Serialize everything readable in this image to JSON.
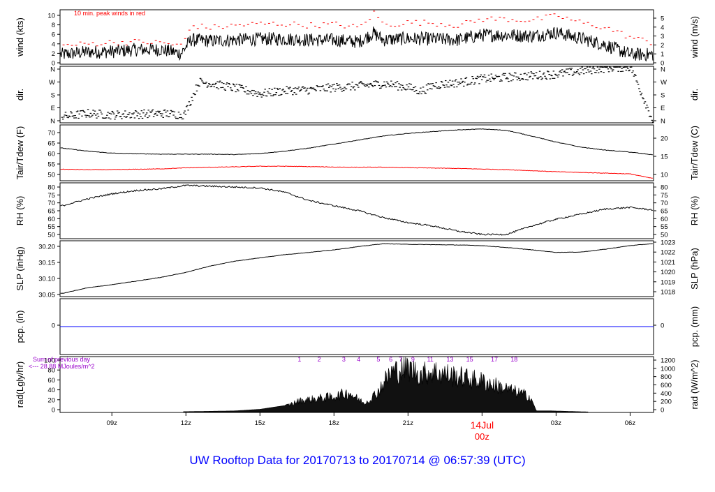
{
  "footer_title": "UW Rooftop Data for 20170713  to  20170714 @ 06:57:39  (UTC)",
  "colors": {
    "text_left": "#000000",
    "peak": "#ff0000",
    "dew": "#ff0000",
    "pcp": "#0000ff",
    "rad_note": "#9900cc",
    "date_marker": "#ff0000",
    "footer": "#0000ff"
  },
  "x_axis": {
    "ticks": [
      "09z",
      "12z",
      "15z",
      "18z",
      "21z",
      "03z",
      "06z"
    ],
    "tick_hours": [
      9,
      12,
      15,
      18,
      21,
      27,
      30
    ],
    "date_marker_day": "14Jul",
    "date_marker_time": "00z",
    "date_marker_hour": 24,
    "range_hours": [
      6.9,
      30.95
    ]
  },
  "chart_data": [
    {
      "type": "line",
      "panel": "wind",
      "ylabel_left": "wind (kts)",
      "ylabel_right": "wind (m/s)",
      "annotation": "10 min. peak winds in red",
      "left_ticks": [
        "0",
        "2",
        "4",
        "6",
        "8",
        "10"
      ],
      "right_ticks": [
        "0",
        "1",
        "2",
        "3",
        "4",
        "5"
      ],
      "ylim": [
        0,
        11.2
      ],
      "series": [
        {
          "x": [
            7,
            8,
            9,
            10,
            11,
            11.8,
            12.2,
            13,
            14,
            15,
            16,
            17,
            18,
            19,
            19.6,
            20,
            21,
            22,
            23,
            24,
            25,
            26,
            27,
            28,
            29,
            30,
            30.9
          ],
          "values": [
            2,
            2.5,
            2.6,
            3,
            3,
            2.2,
            5,
            4.8,
            5,
            5.2,
            5.2,
            5,
            5,
            4.6,
            6.4,
            5,
            5.3,
            5.2,
            5,
            6,
            6,
            5.8,
            6.5,
            5.3,
            4,
            2,
            2
          ]
        },
        {
          "x": [
            7,
            8,
            9,
            10,
            11,
            11.8,
            12.2,
            13,
            14,
            15,
            16,
            17,
            18,
            19,
            19.6,
            20,
            21,
            22,
            23,
            24,
            25,
            26,
            27,
            28,
            29,
            30,
            30.9
          ],
          "values": [
            3.8,
            4.2,
            4.5,
            4.6,
            4.4,
            3.8,
            8,
            7.5,
            8,
            8.3,
            8.3,
            8,
            8.2,
            7.5,
            10.6,
            8,
            8.6,
            8.5,
            8,
            9.3,
            9.3,
            9,
            10,
            8.5,
            7.5,
            5.5,
            4.4
          ]
        }
      ]
    },
    {
      "type": "scatter",
      "panel": "dir",
      "ylabel_left": "dir.",
      "ylabel_right": "dir.",
      "left_ticks": [
        "N",
        "E",
        "S",
        "W",
        "N"
      ],
      "right_ticks": [
        "N",
        "E",
        "S",
        "W",
        "N"
      ],
      "ylim": [
        0,
        360
      ],
      "series": [
        {
          "x": [
            7,
            8,
            9,
            10,
            11,
            11.9,
            12.5,
            13,
            14,
            15,
            16,
            17,
            18,
            19,
            20,
            21,
            21.5,
            22,
            23,
            24,
            25,
            26,
            27,
            28,
            29,
            30,
            30.9
          ],
          "values": [
            40,
            60,
            50,
            55,
            60,
            50,
            260,
            250,
            220,
            185,
            205,
            210,
            225,
            235,
            250,
            225,
            200,
            240,
            255,
            280,
            290,
            300,
            310,
            330,
            350,
            355,
            10
          ]
        }
      ]
    },
    {
      "type": "line",
      "panel": "tair",
      "ylabel_left": "Tair/Tdew (F)",
      "ylabel_right": "Tair/Tdew (C)",
      "left_ticks": [
        "50",
        "55",
        "60",
        "65",
        "70"
      ],
      "right_ticks": [
        "10",
        "15",
        "20"
      ],
      "ylim": [
        46.8,
        74.5
      ],
      "series": [
        {
          "x": [
            7,
            8,
            9,
            10,
            11,
            12,
            13,
            14,
            15,
            16,
            17,
            18,
            19,
            20,
            21,
            22,
            23,
            24,
            25,
            26,
            27,
            28,
            29,
            30,
            30.9
          ],
          "values": [
            63,
            61.5,
            60.5,
            60.2,
            60,
            60,
            60,
            59.8,
            60.3,
            61.5,
            63,
            65,
            67,
            69,
            70.3,
            71.2,
            72,
            72.5,
            71.8,
            69,
            66,
            63.5,
            62,
            61,
            59.7
          ]
        },
        {
          "x": [
            7,
            8,
            9,
            10,
            11,
            12,
            13,
            14,
            15,
            16,
            17,
            18,
            19,
            20,
            21,
            22,
            23,
            24,
            25,
            26,
            27,
            28,
            29,
            30,
            30.9
          ],
          "values": [
            52.5,
            52.3,
            52.3,
            52.5,
            52.7,
            53.2,
            53.5,
            53.7,
            54,
            54,
            53.8,
            53.6,
            53.5,
            53.5,
            53.3,
            53.1,
            52.9,
            52.6,
            52.3,
            51.8,
            51.3,
            50.9,
            50.6,
            50.2,
            48
          ]
        }
      ]
    },
    {
      "type": "line",
      "panel": "rh",
      "ylabel_left": "RH (%)",
      "ylabel_right": "RH (%)",
      "left_ticks": [
        "50",
        "55",
        "60",
        "65",
        "70",
        "75",
        "80"
      ],
      "right_ticks": [
        "50",
        "55",
        "60",
        "65",
        "70",
        "75",
        "80"
      ],
      "ylim": [
        48.5,
        81.5
      ],
      "series": [
        {
          "x": [
            7,
            8,
            9,
            10,
            11,
            12,
            13,
            14,
            15,
            16,
            17,
            18,
            19,
            20,
            21,
            22,
            23,
            24,
            25,
            26,
            27,
            28,
            29,
            30,
            30.9
          ],
          "values": [
            68,
            72,
            75,
            77,
            78,
            80,
            79.5,
            79,
            78.5,
            76,
            71,
            68,
            65,
            61,
            58,
            56,
            53,
            51,
            51,
            56,
            60,
            63,
            66,
            67,
            65.5
          ]
        }
      ]
    },
    {
      "type": "line",
      "panel": "slp",
      "ylabel_left": "SLP (inHg)",
      "ylabel_right": "SLP (hPa)",
      "left_ticks": [
        "30.05",
        "30.10",
        "30.15",
        "30.20"
      ],
      "right_ticks": [
        "1018",
        "1019",
        "1020",
        "1021",
        "1022",
        "1023"
      ],
      "ylim": [
        30.045,
        30.218
      ],
      "series": [
        {
          "x": [
            7,
            8,
            9,
            10,
            11,
            12,
            13,
            14,
            15,
            16,
            17,
            18,
            19,
            20,
            21,
            22,
            23,
            24,
            25,
            26,
            27,
            28,
            29,
            30,
            30.9
          ],
          "values": [
            30.055,
            30.072,
            30.082,
            30.093,
            30.105,
            30.12,
            30.14,
            30.155,
            30.165,
            30.175,
            30.182,
            30.19,
            30.2,
            30.209,
            30.207,
            30.206,
            30.205,
            30.203,
            30.197,
            30.19,
            30.182,
            30.183,
            30.192,
            30.203,
            30.209
          ]
        }
      ]
    },
    {
      "type": "line",
      "panel": "pcp",
      "ylabel_left": "pcp. (in)",
      "ylabel_right": "pcp. (mm)",
      "left_ticks": [
        "0"
      ],
      "right_ticks": [
        "0"
      ],
      "ylim": [
        -1,
        1
      ],
      "series": [
        {
          "x": [
            6.9,
            30.95
          ],
          "values": [
            0,
            0
          ]
        }
      ]
    },
    {
      "type": "area",
      "panel": "rad",
      "ylabel_left": "rad(Lgly/hr)",
      "ylabel_right": "rad (W/m^2)",
      "note_line1": "Sum of previous day",
      "note_line2": "<--- 28.88 MJoules/m^2",
      "left_ticks": [
        "0",
        "20",
        "40",
        "60",
        "80",
        "100"
      ],
      "right_ticks": [
        "0",
        "200",
        "400",
        "600",
        "800",
        "1000",
        "1200"
      ],
      "ylim": [
        -1,
        104
      ],
      "peak_labels": [
        "1",
        "2",
        "3",
        "4",
        "5",
        "6",
        "7",
        "9",
        "11",
        "13",
        "15",
        "17",
        "18"
      ],
      "peak_label_hours": [
        16.6,
        17.4,
        18.4,
        19,
        19.8,
        20.3,
        20.7,
        21.2,
        21.9,
        22.7,
        23.5,
        24.5,
        25.3
      ],
      "series": [
        {
          "x": [
            11.9,
            13,
            14,
            15,
            16,
            16.6,
            17.3,
            18,
            18.6,
            19,
            19.2,
            19.5,
            19.8,
            20.3,
            21,
            21.5,
            22,
            23,
            24,
            25,
            25.9,
            26.2,
            26.8,
            27.5,
            28.3
          ],
          "values": [
            0.5,
            1.2,
            2,
            5,
            12,
            25,
            30,
            35,
            44,
            28,
            20,
            30,
            48,
            90,
            100,
            85,
            92,
            80,
            70,
            52,
            36,
            2,
            2,
            1,
            0
          ]
        }
      ]
    }
  ]
}
